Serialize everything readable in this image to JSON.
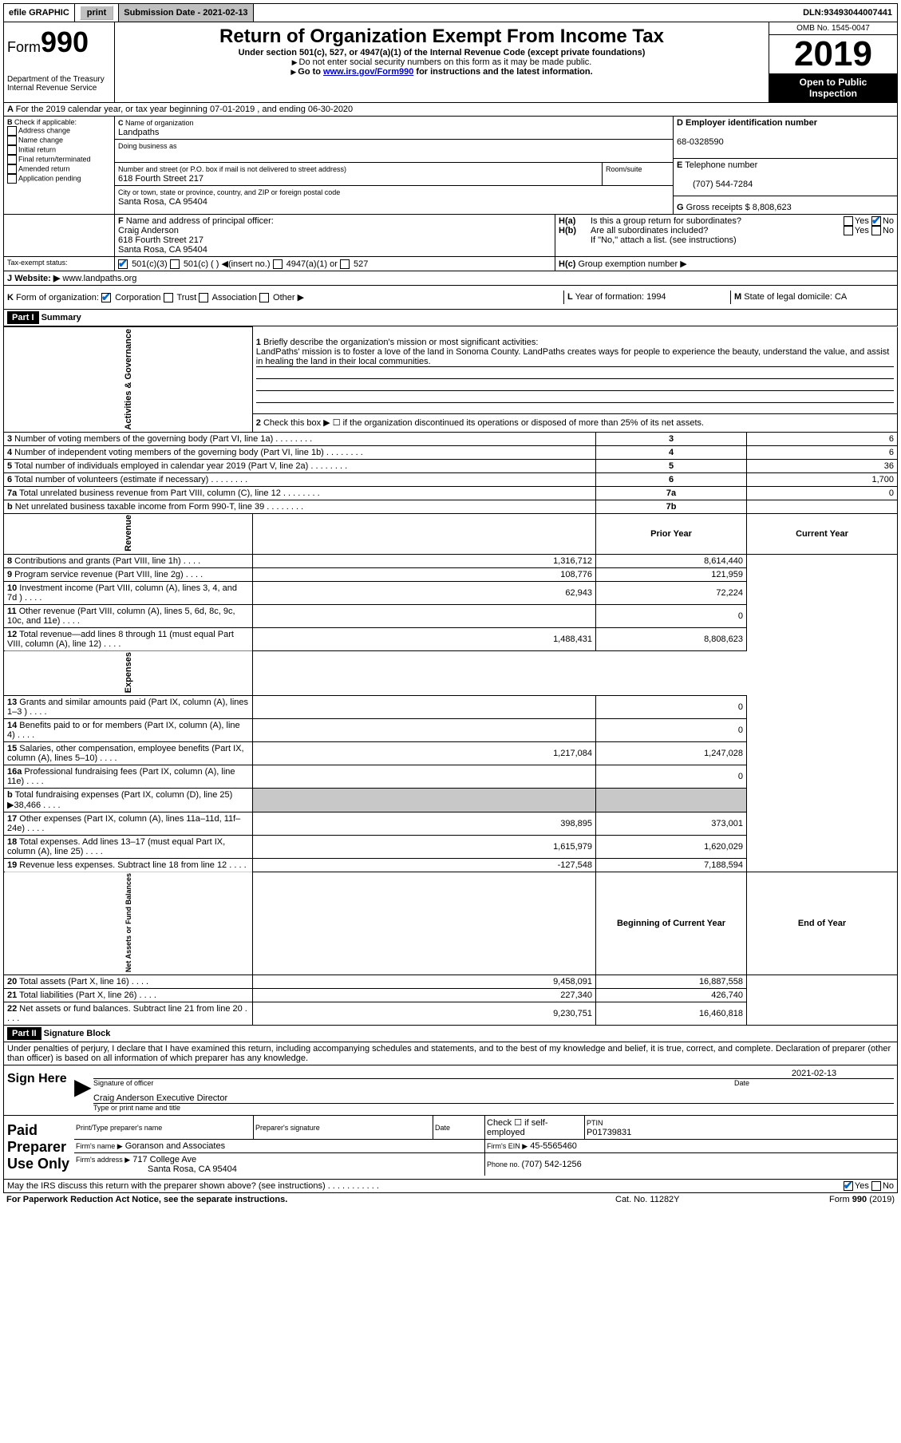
{
  "topbar": {
    "efile": "efile GRAPHIC",
    "print": "print",
    "sub_label": "Submission Date - ",
    "sub_date": "2021-02-13",
    "dln_label": "DLN: ",
    "dln": "93493044007441"
  },
  "header": {
    "form_prefix": "Form",
    "form_num": "990",
    "dept1": "Department of the Treasury",
    "dept2": "Internal Revenue Service",
    "title": "Return of Organization Exempt From Income Tax",
    "sub1": "Under section 501(c), 527, or 4947(a)(1) of the Internal Revenue Code (except private foundations)",
    "sub2": "Do not enter social security numbers on this form as it may be made public.",
    "sub3a": "Go to ",
    "sub3_link": "www.irs.gov/Form990",
    "sub3b": " for instructions and the latest information.",
    "omb": "OMB No. 1545-0047",
    "year": "2019",
    "inspect1": "Open to Public",
    "inspect2": "Inspection"
  },
  "line_a": "For the 2019 calendar year, or tax year beginning 07-01-2019   , and ending 06-30-2020",
  "box_b": {
    "label": "Check if applicable:",
    "opts": [
      "Address change",
      "Name change",
      "Initial return",
      "Final return/terminated",
      "Amended return",
      "Application pending"
    ]
  },
  "box_c": {
    "label_name": "Name of organization",
    "name": "Landpaths",
    "dba_label": "Doing business as",
    "addr_label": "Number and street (or P.O. box if mail is not delivered to street address)",
    "room_label": "Room/suite",
    "addr": "618 Fourth Street 217",
    "city_label": "City or town, state or province, country, and ZIP or foreign postal code",
    "city": "Santa Rosa, CA  95404"
  },
  "box_d": {
    "label": "Employer identification number",
    "val": "68-0328590"
  },
  "box_e": {
    "label": "Telephone number",
    "val": "(707) 544-7284"
  },
  "box_g": {
    "label": "Gross receipts $ ",
    "val": "8,808,623"
  },
  "box_f": {
    "label": "Name and address of principal officer:",
    "name": "Craig Anderson",
    "addr1": "618 Fourth Street 217",
    "addr2": "Santa Rosa, CA  95404"
  },
  "box_h": {
    "a": "Is this a group return for subordinates?",
    "b": "Are all subordinates included?",
    "b_note": "If \"No,\" attach a list. (see instructions)",
    "c": "Group exemption number ▶",
    "yes": "Yes",
    "no": "No"
  },
  "tax_status": {
    "label": "Tax-exempt status:",
    "o1": "501(c)(3)",
    "o2": "501(c) (  ) ◀(insert no.)",
    "o3": "4947(a)(1) or",
    "o4": "527"
  },
  "line_j": {
    "label": "Website: ▶",
    "val": "www.landpaths.org"
  },
  "line_k": {
    "label": "Form of organization:",
    "opts": [
      "Corporation",
      "Trust",
      "Association",
      "Other ▶"
    ]
  },
  "line_l": {
    "label": "Year of formation: ",
    "val": "1994"
  },
  "line_m": {
    "label": "State of legal domicile: ",
    "val": "CA"
  },
  "part1": {
    "hdr": "Part I",
    "title": "Summary"
  },
  "summary": {
    "side1": "Activities & Governance",
    "side2": "Revenue",
    "side3": "Expenses",
    "side4": "Net Assets or Fund Balances",
    "l1_label": "Briefly describe the organization's mission or most significant activities:",
    "l1_text": "LandPaths' mission is to foster a love of the land in Sonoma County. LandPaths creates ways for people to experience the beauty, understand the value, and assist in healing the land in their local communities.",
    "l2": "Check this box ▶ ☐ if the organization discontinued its operations or disposed of more than 25% of its net assets.",
    "rows_gov": [
      {
        "n": "3",
        "t": "Number of voting members of the governing body (Part VI, line 1a)",
        "box": "3",
        "v": "6"
      },
      {
        "n": "4",
        "t": "Number of independent voting members of the governing body (Part VI, line 1b)",
        "box": "4",
        "v": "6"
      },
      {
        "n": "5",
        "t": "Total number of individuals employed in calendar year 2019 (Part V, line 2a)",
        "box": "5",
        "v": "36"
      },
      {
        "n": "6",
        "t": "Total number of volunteers (estimate if necessary)",
        "box": "6",
        "v": "1,700"
      },
      {
        "n": "7a",
        "t": "Total unrelated business revenue from Part VIII, column (C), line 12",
        "box": "7a",
        "v": "0"
      },
      {
        "n": "b",
        "t": "Net unrelated business taxable income from Form 990-T, line 39",
        "box": "7b",
        "v": ""
      }
    ],
    "col_prior": "Prior Year",
    "col_current": "Current Year",
    "rows_rev": [
      {
        "n": "8",
        "t": "Contributions and grants (Part VIII, line 1h)",
        "py": "1,316,712",
        "cy": "8,614,440"
      },
      {
        "n": "9",
        "t": "Program service revenue (Part VIII, line 2g)",
        "py": "108,776",
        "cy": "121,959"
      },
      {
        "n": "10",
        "t": "Investment income (Part VIII, column (A), lines 3, 4, and 7d )",
        "py": "62,943",
        "cy": "72,224"
      },
      {
        "n": "11",
        "t": "Other revenue (Part VIII, column (A), lines 5, 6d, 8c, 9c, 10c, and 11e)",
        "py": "",
        "cy": "0"
      },
      {
        "n": "12",
        "t": "Total revenue—add lines 8 through 11 (must equal Part VIII, column (A), line 12)",
        "py": "1,488,431",
        "cy": "8,808,623"
      }
    ],
    "rows_exp": [
      {
        "n": "13",
        "t": "Grants and similar amounts paid (Part IX, column (A), lines 1–3 )",
        "py": "",
        "cy": "0"
      },
      {
        "n": "14",
        "t": "Benefits paid to or for members (Part IX, column (A), line 4)",
        "py": "",
        "cy": "0"
      },
      {
        "n": "15",
        "t": "Salaries, other compensation, employee benefits (Part IX, column (A), lines 5–10)",
        "py": "1,217,084",
        "cy": "1,247,028"
      },
      {
        "n": "16a",
        "t": "Professional fundraising fees (Part IX, column (A), line 11e)",
        "py": "",
        "cy": "0"
      },
      {
        "n": "b",
        "t": "Total fundraising expenses (Part IX, column (D), line 25) ▶38,466",
        "py": "grey",
        "cy": "grey"
      },
      {
        "n": "17",
        "t": "Other expenses (Part IX, column (A), lines 11a–11d, 11f–24e)",
        "py": "398,895",
        "cy": "373,001"
      },
      {
        "n": "18",
        "t": "Total expenses. Add lines 13–17 (must equal Part IX, column (A), line 25)",
        "py": "1,615,979",
        "cy": "1,620,029"
      },
      {
        "n": "19",
        "t": "Revenue less expenses. Subtract line 18 from line 12",
        "py": "-127,548",
        "cy": "7,188,594"
      }
    ],
    "col_begin": "Beginning of Current Year",
    "col_end": "End of Year",
    "rows_net": [
      {
        "n": "20",
        "t": "Total assets (Part X, line 16)",
        "py": "9,458,091",
        "cy": "16,887,558"
      },
      {
        "n": "21",
        "t": "Total liabilities (Part X, line 26)",
        "py": "227,340",
        "cy": "426,740"
      },
      {
        "n": "22",
        "t": "Net assets or fund balances. Subtract line 21 from line 20",
        "py": "9,230,751",
        "cy": "16,460,818"
      }
    ]
  },
  "part2": {
    "hdr": "Part II",
    "title": "Signature Block"
  },
  "sig": {
    "decl": "Under penalties of perjury, I declare that I have examined this return, including accompanying schedules and statements, and to the best of my knowledge and belief, it is true, correct, and complete. Declaration of preparer (other than officer) is based on all information of which preparer has any knowledge.",
    "sign_here": "Sign Here",
    "sig_officer": "Signature of officer",
    "date": "Date",
    "date_val": "2021-02-13",
    "name_title": "Craig Anderson  Executive Director",
    "name_title_lbl": "Type or print name and title",
    "paid": "Paid Preparer Use Only",
    "col1": "Print/Type preparer's name",
    "col2": "Preparer's signature",
    "col3": "Date",
    "col4a": "Check ☐ if self-employed",
    "col5_lbl": "PTIN",
    "ptin": "P01739831",
    "firm_name_lbl": "Firm's name   ▶",
    "firm_name": "Goranson and Associates",
    "firm_ein_lbl": "Firm's EIN ▶",
    "firm_ein": "45-5565460",
    "firm_addr_lbl": "Firm's address ▶",
    "firm_addr1": "717 College Ave",
    "firm_addr2": "Santa Rosa, CA  95404",
    "phone_lbl": "Phone no. ",
    "phone": "(707) 542-1256",
    "discuss": "May the IRS discuss this return with the preparer shown above? (see instructions)",
    "yes": "Yes",
    "no": "No"
  },
  "footer": {
    "left": "For Paperwork Reduction Act Notice, see the separate instructions.",
    "mid": "Cat. No. 11282Y",
    "right": "Form 990 (2019)"
  }
}
